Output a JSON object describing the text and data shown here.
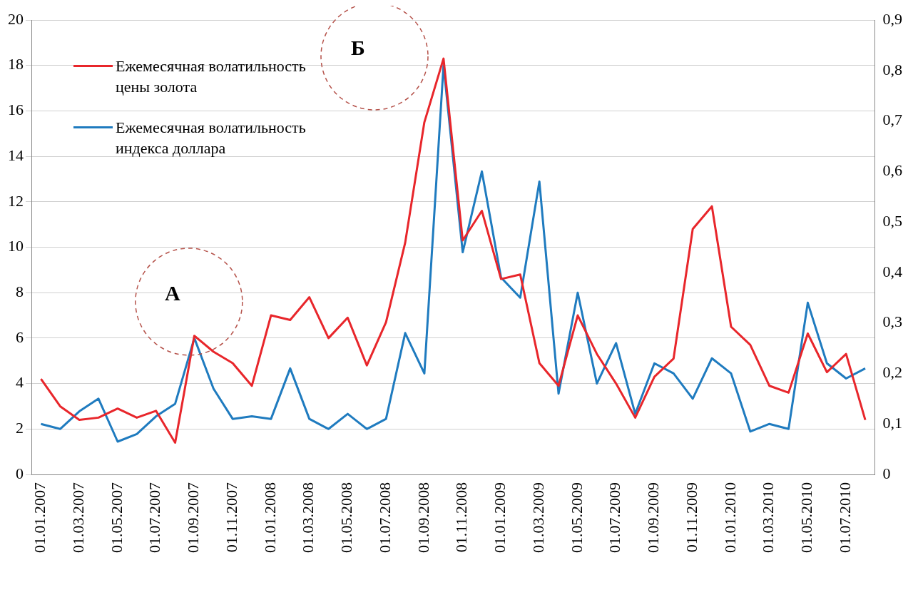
{
  "chart_data": {
    "type": "line",
    "categories": [
      "01.01.2007",
      null,
      "01.03.2007",
      null,
      "01.05.2007",
      null,
      "01.07.2007",
      null,
      "01.09.2007",
      null,
      "01.11.2007",
      null,
      "01.01.2008",
      null,
      "01.03.2008",
      null,
      "01.05.2008",
      null,
      "01.07.2008",
      null,
      "01.09.2008",
      null,
      "01.11.2008",
      null,
      "01.01.2009",
      null,
      "01.03.2009",
      null,
      "01.05.2009",
      null,
      "01.07.2009",
      null,
      "01.09.2009",
      null,
      "01.11.2009",
      null,
      "01.01.2010",
      null,
      "01.03.2010",
      null,
      "01.05.2010",
      null,
      "01.07.2010",
      null
    ],
    "series": [
      {
        "name": "Ежемесячная волатильность цены золота",
        "color": "#e8262b",
        "values": [
          4.2,
          3.0,
          2.4,
          2.5,
          2.9,
          2.5,
          2.8,
          1.4,
          6.1,
          5.4,
          4.9,
          3.9,
          7.0,
          6.8,
          7.8,
          6.0,
          6.9,
          4.8,
          6.7,
          10.2,
          15.5,
          18.3,
          10.3,
          11.6,
          8.6,
          8.8,
          4.9,
          3.9,
          7.0,
          5.3,
          4.0,
          2.5,
          4.3,
          5.1,
          10.8,
          11.8,
          6.5,
          5.7,
          3.9,
          3.6,
          6.2,
          4.5,
          5.3,
          2.4
        ]
      },
      {
        "name": "Ежемесячная волатильность индекса доллара",
        "color": "#1f7bbf",
        "axis": "y2",
        "values": [
          0.1,
          0.09,
          0.125,
          0.15,
          0.065,
          0.08,
          0.115,
          0.14,
          0.27,
          0.17,
          0.11,
          0.115,
          0.11,
          0.21,
          0.11,
          0.09,
          0.12,
          0.09,
          0.11,
          0.28,
          0.2,
          0.81,
          0.44,
          0.6,
          0.39,
          0.35,
          0.58,
          0.16,
          0.36,
          0.18,
          0.26,
          0.12,
          0.22,
          0.2,
          0.15,
          0.23,
          0.2,
          0.085,
          0.1,
          0.09,
          0.34,
          0.22,
          0.19,
          0.21
        ]
      }
    ],
    "ylim": [
      0,
      20
    ],
    "yticks": [
      0,
      2,
      4,
      6,
      8,
      10,
      12,
      14,
      16,
      18,
      20
    ],
    "y2lim": [
      0,
      0.9
    ],
    "y2ticks": [
      {
        "value": 0,
        "label": "0"
      },
      {
        "value": 0.1,
        "label": "0,1"
      },
      {
        "value": 0.2,
        "label": "0,2"
      },
      {
        "value": 0.3,
        "label": "0,3"
      },
      {
        "value": 0.4,
        "label": "0,4"
      },
      {
        "value": 0.5,
        "label": "0,5"
      },
      {
        "value": 0.6,
        "label": "0,6"
      },
      {
        "value": 0.7,
        "label": "0,7"
      },
      {
        "value": 0.8,
        "label": "0,8"
      },
      {
        "value": 0.9,
        "label": "0,9"
      }
    ],
    "annotations": [
      "А",
      "Б"
    ],
    "grid": "y",
    "legend": "top left",
    "marker": "none",
    "line_style": "solid"
  }
}
